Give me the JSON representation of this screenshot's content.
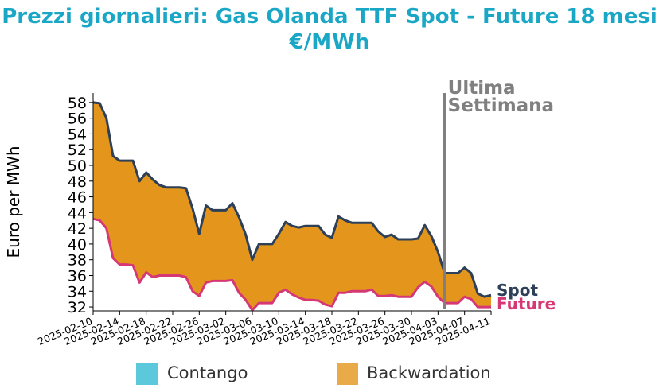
{
  "title": {
    "line1": "Prezzi giornalieri: Gas Olanda TTF Spot - Future 18 mesi",
    "line2": "€/MWh"
  },
  "legend": {
    "contango_label": "Contango",
    "backwardation_label": "Backwardation"
  },
  "colors": {
    "title": "#1aa7c6",
    "spot": "#2e4057",
    "future": "#d63775",
    "contango": "#5bc8db",
    "backwardation": "#e3961b",
    "marker": "#808080"
  },
  "chart_data": {
    "type": "area",
    "ylabel": "Euro per MWh",
    "ylim": [
      31.5,
      59.2
    ],
    "yticks": [
      32,
      34,
      36,
      38,
      40,
      42,
      44,
      46,
      48,
      50,
      52,
      54,
      56,
      58
    ],
    "xlim": [
      "2025-02-10",
      "2025-04-11"
    ],
    "xticks": [
      "2025-02-10",
      "2025-02-14",
      "2025-02-18",
      "2025-02-22",
      "2025-02-26",
      "2025-03-02",
      "2025-03-06",
      "2025-03-10",
      "2025-03-14",
      "2025-03-18",
      "2025-03-22",
      "2025-03-26",
      "2025-03-30",
      "2025-04-03",
      "2025-04-07",
      "2025-04-11"
    ],
    "marker": {
      "date": "2025-04-04",
      "label_line1": "Ultima",
      "label_line2": "Settimana"
    },
    "series": [
      {
        "name": "Spot",
        "points": [
          [
            "2025-02-10",
            58.0
          ],
          [
            "2025-02-11",
            57.9
          ],
          [
            "2025-02-12",
            56.0
          ],
          [
            "2025-02-13",
            51.2
          ],
          [
            "2025-02-14",
            50.6
          ],
          [
            "2025-02-15",
            50.6
          ],
          [
            "2025-02-16",
            50.6
          ],
          [
            "2025-02-17",
            48.0
          ],
          [
            "2025-02-18",
            49.1
          ],
          [
            "2025-02-19",
            48.2
          ],
          [
            "2025-02-20",
            47.5
          ],
          [
            "2025-02-21",
            47.2
          ],
          [
            "2025-02-22",
            47.2
          ],
          [
            "2025-02-23",
            47.2
          ],
          [
            "2025-02-24",
            47.1
          ],
          [
            "2025-02-25",
            44.5
          ],
          [
            "2025-02-26",
            41.3
          ],
          [
            "2025-02-27",
            44.9
          ],
          [
            "2025-02-28",
            44.3
          ],
          [
            "2025-03-01",
            44.3
          ],
          [
            "2025-03-02",
            44.3
          ],
          [
            "2025-03-03",
            45.2
          ],
          [
            "2025-03-04",
            43.4
          ],
          [
            "2025-03-05",
            41.2
          ],
          [
            "2025-03-06",
            38.0
          ],
          [
            "2025-03-07",
            40.0
          ],
          [
            "2025-03-08",
            40.0
          ],
          [
            "2025-03-09",
            40.0
          ],
          [
            "2025-03-10",
            41.3
          ],
          [
            "2025-03-11",
            42.8
          ],
          [
            "2025-03-12",
            42.3
          ],
          [
            "2025-03-13",
            42.1
          ],
          [
            "2025-03-14",
            42.3
          ],
          [
            "2025-03-15",
            42.3
          ],
          [
            "2025-03-16",
            42.3
          ],
          [
            "2025-03-17",
            41.2
          ],
          [
            "2025-03-18",
            40.8
          ],
          [
            "2025-03-19",
            43.5
          ],
          [
            "2025-03-20",
            43.0
          ],
          [
            "2025-03-21",
            42.7
          ],
          [
            "2025-03-22",
            42.7
          ],
          [
            "2025-03-23",
            42.7
          ],
          [
            "2025-03-24",
            42.7
          ],
          [
            "2025-03-25",
            41.6
          ],
          [
            "2025-03-26",
            40.9
          ],
          [
            "2025-03-27",
            41.2
          ],
          [
            "2025-03-28",
            40.6
          ],
          [
            "2025-03-29",
            40.6
          ],
          [
            "2025-03-30",
            40.6
          ],
          [
            "2025-03-31",
            40.7
          ],
          [
            "2025-04-01",
            42.4
          ],
          [
            "2025-04-02",
            41.0
          ],
          [
            "2025-04-03",
            39.0
          ],
          [
            "2025-04-04",
            36.3
          ],
          [
            "2025-04-05",
            36.3
          ],
          [
            "2025-04-06",
            36.3
          ],
          [
            "2025-04-07",
            37.0
          ],
          [
            "2025-04-08",
            36.3
          ],
          [
            "2025-04-09",
            33.7
          ],
          [
            "2025-04-10",
            33.3
          ],
          [
            "2025-04-11",
            33.5
          ]
        ]
      },
      {
        "name": "Future",
        "points": [
          [
            "2025-02-10",
            43.2
          ],
          [
            "2025-02-11",
            43.0
          ],
          [
            "2025-02-12",
            42.0
          ],
          [
            "2025-02-13",
            38.2
          ],
          [
            "2025-02-14",
            37.4
          ],
          [
            "2025-02-15",
            37.4
          ],
          [
            "2025-02-16",
            37.3
          ],
          [
            "2025-02-17",
            35.1
          ],
          [
            "2025-02-18",
            36.4
          ],
          [
            "2025-02-19",
            35.8
          ],
          [
            "2025-02-20",
            36.0
          ],
          [
            "2025-02-21",
            36.0
          ],
          [
            "2025-02-22",
            36.0
          ],
          [
            "2025-02-23",
            36.0
          ],
          [
            "2025-02-24",
            35.8
          ],
          [
            "2025-02-25",
            34.0
          ],
          [
            "2025-02-26",
            33.4
          ],
          [
            "2025-02-27",
            35.1
          ],
          [
            "2025-02-28",
            35.3
          ],
          [
            "2025-03-01",
            35.3
          ],
          [
            "2025-03-02",
            35.3
          ],
          [
            "2025-03-03",
            35.4
          ],
          [
            "2025-03-04",
            33.8
          ],
          [
            "2025-03-05",
            32.9
          ],
          [
            "2025-03-06",
            31.6
          ],
          [
            "2025-03-07",
            32.5
          ],
          [
            "2025-03-08",
            32.5
          ],
          [
            "2025-03-09",
            32.5
          ],
          [
            "2025-03-10",
            33.8
          ],
          [
            "2025-03-11",
            34.2
          ],
          [
            "2025-03-12",
            33.6
          ],
          [
            "2025-03-13",
            33.2
          ],
          [
            "2025-03-14",
            32.9
          ],
          [
            "2025-03-15",
            32.9
          ],
          [
            "2025-03-16",
            32.8
          ],
          [
            "2025-03-17",
            32.3
          ],
          [
            "2025-03-18",
            32.1
          ],
          [
            "2025-03-19",
            33.8
          ],
          [
            "2025-03-20",
            33.8
          ],
          [
            "2025-03-21",
            34.0
          ],
          [
            "2025-03-22",
            34.0
          ],
          [
            "2025-03-23",
            34.0
          ],
          [
            "2025-03-24",
            34.2
          ],
          [
            "2025-03-25",
            33.4
          ],
          [
            "2025-03-26",
            33.4
          ],
          [
            "2025-03-27",
            33.5
          ],
          [
            "2025-03-28",
            33.3
          ],
          [
            "2025-03-29",
            33.3
          ],
          [
            "2025-03-30",
            33.3
          ],
          [
            "2025-03-31",
            34.5
          ],
          [
            "2025-04-01",
            35.2
          ],
          [
            "2025-04-02",
            34.6
          ],
          [
            "2025-04-03",
            33.3
          ],
          [
            "2025-04-04",
            32.5
          ],
          [
            "2025-04-05",
            32.5
          ],
          [
            "2025-04-06",
            32.5
          ],
          [
            "2025-04-07",
            33.3
          ],
          [
            "2025-04-08",
            33.0
          ],
          [
            "2025-04-09",
            32.0
          ],
          [
            "2025-04-10",
            32.0
          ],
          [
            "2025-04-11",
            32.0
          ]
        ]
      }
    ]
  }
}
